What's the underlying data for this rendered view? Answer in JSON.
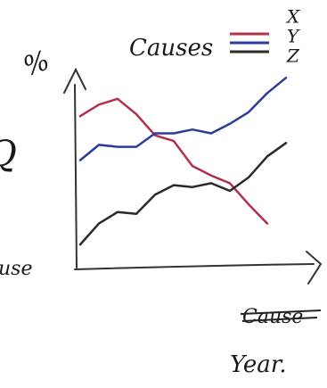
{
  "chart_data": {
    "type": "line",
    "title": "Causes",
    "y_label": "%",
    "x_label": "Year.",
    "annotations": [
      "Cause",
      "use",
      "Q"
    ],
    "categories": [
      null,
      null,
      null,
      null,
      null,
      null,
      null,
      null,
      null,
      null,
      null,
      null
    ],
    "ylim": [
      0,
      100
    ],
    "series": [
      {
        "name": "X",
        "color": "#b3304d",
        "values": [
          79,
          85,
          88,
          80,
          69,
          66,
          53,
          48,
          44,
          33,
          23,
          null
        ]
      },
      {
        "name": "Y",
        "color": "#2b3c9c",
        "values": [
          56,
          64,
          63,
          63,
          70,
          70,
          72,
          70,
          75,
          81,
          91,
          99
        ]
      },
      {
        "name": "Z",
        "color": "#2a2a2a",
        "values": [
          12,
          23,
          29,
          28,
          38,
          43,
          42,
          44,
          40,
          47,
          58,
          65
        ]
      }
    ]
  }
}
